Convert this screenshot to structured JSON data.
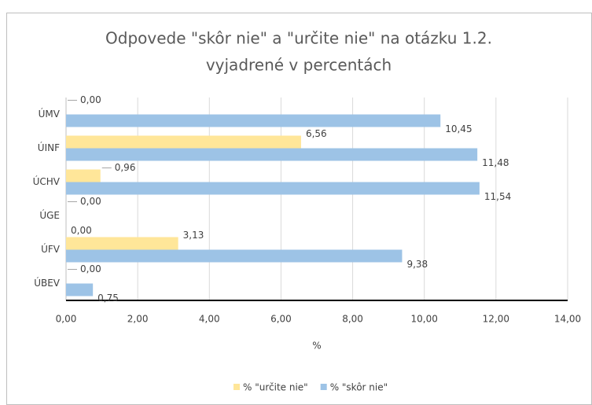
{
  "chart_data": {
    "type": "bar",
    "orientation": "horizontal",
    "title": [
      "Odpovede \"skôr nie\" a \"určite nie\" na otázku 1.2.",
      "vyjadrené v percentách"
    ],
    "categories": [
      "ÚMV",
      "ÚINF",
      "ÚCHV",
      "ÚGE",
      "ÚFV",
      "ÚBEV"
    ],
    "series": [
      {
        "name": "% \"určite nie\"",
        "color": "#ffe699",
        "values": [
          0,
          6.56,
          0.96,
          0,
          3.13,
          0
        ],
        "value_labels": [
          "0,00",
          "6,56",
          "0,96",
          "0,00",
          "3,13",
          "0,00"
        ]
      },
      {
        "name": "% \"skôr nie\"",
        "color": "#9dc3e6",
        "values": [
          10.45,
          11.48,
          11.54,
          0,
          9.38,
          0.75
        ],
        "value_labels": [
          "10,45",
          "11,48",
          "11,54",
          "0,00",
          "9,38",
          "0,75"
        ]
      }
    ],
    "xlim": [
      0,
      14
    ],
    "xticks": [
      {
        "value": 0,
        "label": "0,00"
      },
      {
        "value": 2,
        "label": "2,00"
      },
      {
        "value": 4,
        "label": "4,00"
      },
      {
        "value": 6,
        "label": "6,00"
      },
      {
        "value": 8,
        "label": "8,00"
      },
      {
        "value": 10,
        "label": "10,00"
      },
      {
        "value": 12,
        "label": "12,00"
      },
      {
        "value": 14,
        "label": "14,00"
      }
    ],
    "xlabel": "%",
    "grid": true,
    "legend": "bottom"
  }
}
